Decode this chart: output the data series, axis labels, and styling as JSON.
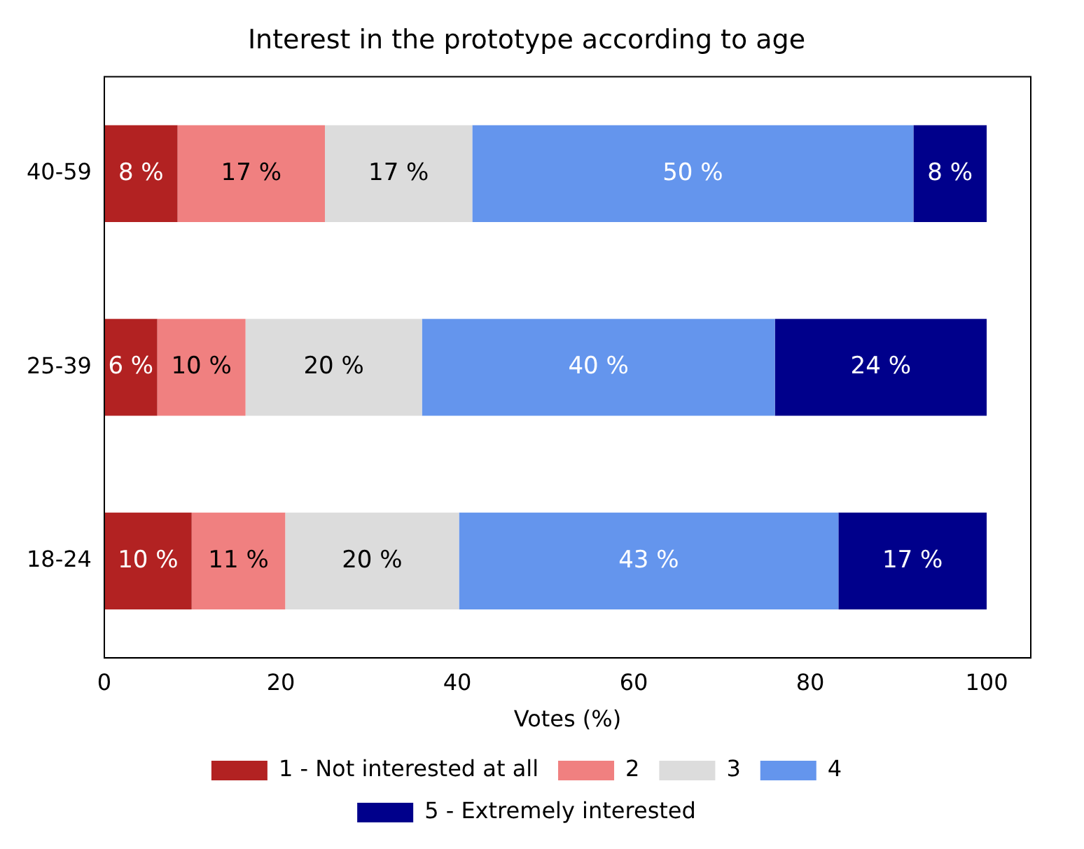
{
  "chart_data": {
    "type": "bar",
    "orientation": "horizontal",
    "stacked": true,
    "title": "Interest in the prototype according to age",
    "xlabel": "Votes (%)",
    "categories": [
      "40-59",
      "25-39",
      "18-24"
    ],
    "series": [
      {
        "name": "1 - Not interested at all",
        "color": "#b22222",
        "values": [
          8.3,
          6,
          9.9
        ],
        "value_labels": [
          "8 %",
          "6 %",
          "10 %"
        ]
      },
      {
        "name": "2",
        "color": "#f08080",
        "values": [
          16.7,
          10,
          10.6
        ],
        "value_labels": [
          "17 %",
          "10 %",
          "11 %"
        ]
      },
      {
        "name": "3",
        "color": "#dcdcdc",
        "values": [
          16.7,
          20,
          19.7
        ],
        "value_labels": [
          "17 %",
          "20 %",
          "20 %"
        ]
      },
      {
        "name": "4",
        "color": "#6495ed",
        "values": [
          50,
          40,
          43
        ],
        "value_labels": [
          "50 %",
          "40 %",
          "43 %"
        ]
      },
      {
        "name": "5 - Extremely interested",
        "color": "#00008b",
        "values": [
          8.3,
          24,
          16.8
        ],
        "value_labels": [
          "8 %",
          "24 %",
          "17 %"
        ]
      }
    ],
    "xlim": [
      0,
      105
    ],
    "xticks": [
      0,
      20,
      40,
      60,
      80,
      100
    ],
    "grid": false,
    "legend": "bottom"
  }
}
